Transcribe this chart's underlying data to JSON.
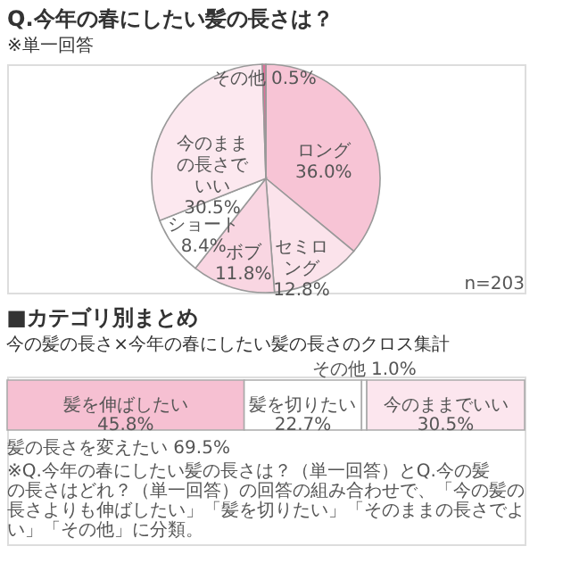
{
  "chart_data": [
    {
      "type": "pie",
      "title": "Q.今年の春にしたい髪の長さは？",
      "subtitle": "※単一回答",
      "categories": [
        "ロング",
        "セミロング",
        "ボブ",
        "ショート",
        "今のままの長さでいい",
        "その他"
      ],
      "values": [
        36.0,
        12.8,
        11.8,
        8.4,
        30.5,
        0.5
      ],
      "value_labels": [
        "36.0%",
        "12.8%",
        "11.8%",
        "8.4%",
        "30.5%",
        "0.5%"
      ],
      "colors": [
        "#f7c4d5",
        "#fbe3eb",
        "#f9d6e2",
        "#ffffff",
        "#fce8ef",
        "#e0709a"
      ],
      "annotations": [
        "n=203"
      ]
    },
    {
      "type": "bar",
      "orientation": "horizontal",
      "stacked": true,
      "title": "■カテゴリ別まとめ",
      "subtitle": "今の髪の長さ×今年の春にしたい髪の長さのクロス集計",
      "categories": [
        null
      ],
      "series": [
        {
          "name": "髪を伸ばしたい",
          "color": "#f6c0d2",
          "values": [
            45.8
          ],
          "value_labels": [
            "45.8%"
          ]
        },
        {
          "name": "髪を切りたい",
          "color": "#ffffff",
          "values": [
            22.7
          ],
          "value_labels": [
            "22.7%"
          ]
        },
        {
          "name": "その他",
          "color": "#ffffff",
          "values": [
            1.0
          ],
          "value_labels": [
            "1.0%"
          ]
        },
        {
          "name": "今のままでいい",
          "color": "#fce6ee",
          "values": [
            30.5
          ],
          "value_labels": [
            "30.5%"
          ]
        }
      ],
      "annotations": [
        "髪の長さを変えたい 69.5%",
        "※Q.今年の春にしたい髪の長さは？（単一回答）とQ.今の髪の長さはどれ？（単一回答）の回答の組み合わせで、「今の髪の長さよりも伸ばしたい」「髪を切りたい」「そのままの長さでよい」「その他」に分類。"
      ]
    }
  ]
}
